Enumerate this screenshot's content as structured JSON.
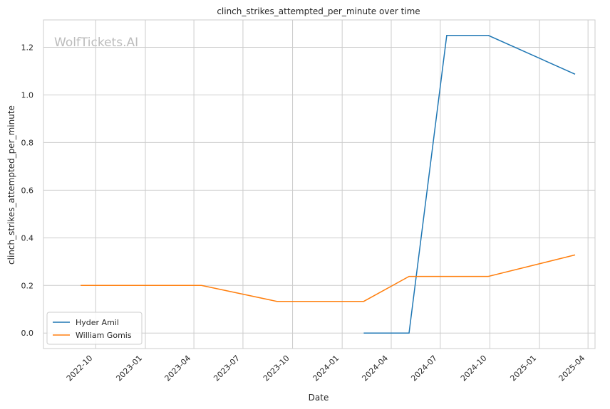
{
  "chart_data": {
    "type": "line",
    "title": "clinch_strikes_attempted_per_minute over time",
    "xlabel": "Date",
    "ylabel": "clinch_strikes_attempted_per_minute",
    "watermark": "WolfTickets.AI",
    "xlim": [
      "2022-06-26",
      "2025-04-14"
    ],
    "ylim": [
      -0.065,
      1.315
    ],
    "x_ticks": [
      "2022-10",
      "2023-01",
      "2023-04",
      "2023-07",
      "2023-10",
      "2024-01",
      "2024-04",
      "2024-07",
      "2024-10",
      "2025-01",
      "2025-04"
    ],
    "y_ticks": [
      0.0,
      0.2,
      0.4,
      0.6,
      0.8,
      1.0,
      1.2
    ],
    "y_tick_labels": [
      "0.0",
      "0.2",
      "0.4",
      "0.6",
      "0.8",
      "1.0",
      "1.2"
    ],
    "grid": true,
    "legend_position": "lower-left",
    "series": [
      {
        "name": "Hyder Amil",
        "color": "#1f77b4",
        "points": [
          {
            "x": "2024-02-10",
            "y": 0.0
          },
          {
            "x": "2024-05-04",
            "y": 0.0
          },
          {
            "x": "2024-07-13",
            "y": 1.25
          },
          {
            "x": "2024-09-28",
            "y": 1.25
          },
          {
            "x": "2025-03-08",
            "y": 1.087
          }
        ]
      },
      {
        "name": "William Gomis",
        "color": "#ff7f0e",
        "points": [
          {
            "x": "2022-09-03",
            "y": 0.2
          },
          {
            "x": "2023-04-15",
            "y": 0.2
          },
          {
            "x": "2023-09-02",
            "y": 0.133
          },
          {
            "x": "2024-02-10",
            "y": 0.133
          },
          {
            "x": "2024-05-04",
            "y": 0.238
          },
          {
            "x": "2024-09-28",
            "y": 0.238
          },
          {
            "x": "2025-03-08",
            "y": 0.328
          }
        ]
      }
    ]
  }
}
